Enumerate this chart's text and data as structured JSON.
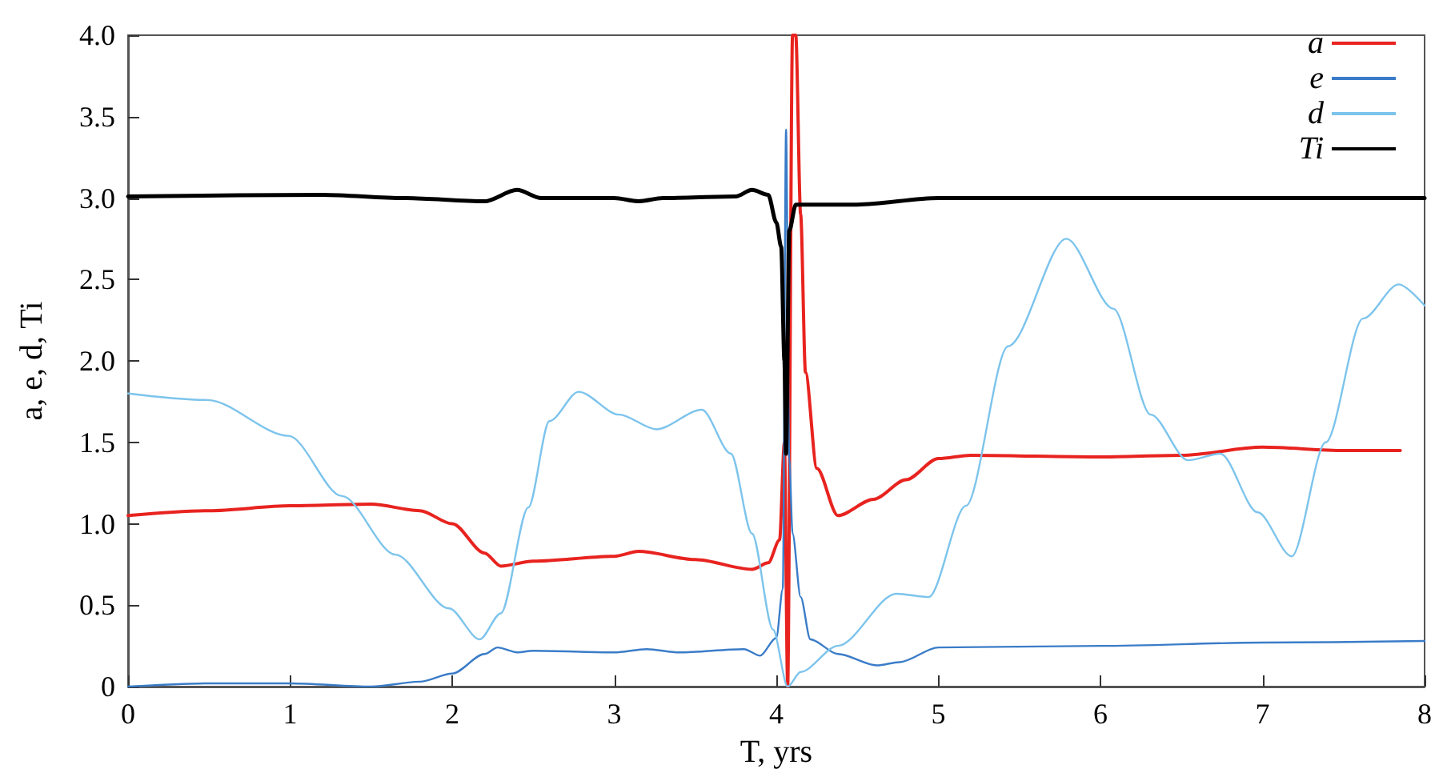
{
  "chart_data": {
    "type": "line",
    "xlabel": "T, yrs",
    "ylabel": "a, e, d, Ti",
    "xlim": [
      0,
      8
    ],
    "xticks": [
      0,
      1,
      2,
      3,
      4,
      5,
      6,
      7,
      8
    ],
    "ylim": [
      0,
      4
    ],
    "yticks": [
      0,
      0.5,
      {
        "value": 1,
        "label": "1.0"
      },
      1.5,
      {
        "value": 2,
        "label": "2.0"
      },
      2.5,
      {
        "value": 3,
        "label": "3.0"
      },
      3.5,
      {
        "value": 4,
        "label": "4.0"
      }
    ],
    "grid": false,
    "legend": "top right",
    "marker": "none",
    "line_style": "solid",
    "series": [
      {
        "name": "a",
        "color": "#e8231f",
        "x": [
          0,
          0.5,
          1,
          1.5,
          1.8,
          2,
          2.2,
          2.3,
          2.5,
          3,
          3.15,
          3.5,
          3.85,
          3.95,
          4.02,
          4.05,
          4.07,
          4.1,
          4.12,
          4.15,
          4.18,
          4.25,
          4.38,
          4.6,
          4.8,
          5,
          5.2,
          6,
          6.5,
          7,
          7.5,
          7.85
        ],
        "values": [
          1.05,
          1.08,
          1.11,
          1.12,
          1.08,
          1.0,
          0.82,
          0.74,
          0.77,
          0.8,
          0.83,
          0.78,
          0.72,
          0.76,
          0.9,
          1.5,
          0.0,
          4.0,
          4.0,
          2.9,
          1.93,
          1.34,
          1.05,
          1.15,
          1.27,
          1.4,
          1.42,
          1.41,
          1.42,
          1.47,
          1.45,
          1.45
        ]
      },
      {
        "name": "e",
        "color": "#3a7cc8",
        "x": [
          0,
          0.5,
          1,
          1.5,
          1.8,
          2,
          2.2,
          2.28,
          2.4,
          2.5,
          3,
          3.2,
          3.4,
          3.8,
          3.9,
          4.0,
          4.04,
          4.06,
          4.08,
          4.1,
          4.15,
          4.21,
          4.38,
          4.62,
          4.76,
          5,
          6,
          7,
          8
        ],
        "values": [
          0.0,
          0.02,
          0.02,
          0.0,
          0.03,
          0.08,
          0.2,
          0.24,
          0.21,
          0.22,
          0.21,
          0.23,
          0.21,
          0.23,
          0.19,
          0.3,
          0.6,
          3.42,
          1.4,
          0.94,
          0.55,
          0.29,
          0.2,
          0.13,
          0.15,
          0.24,
          0.25,
          0.27,
          0.28
        ]
      },
      {
        "name": "d",
        "color": "#7cc4ec",
        "x": [
          0,
          0.49,
          0.99,
          1.32,
          1.65,
          1.98,
          2.17,
          2.3,
          2.47,
          2.6,
          2.78,
          3.03,
          3.26,
          3.54,
          3.72,
          3.85,
          3.98,
          4.07,
          4.15,
          4.38,
          4.74,
          4.94,
          5.17,
          5.43,
          5.79,
          6.08,
          6.31,
          6.54,
          6.74,
          6.97,
          7.18,
          7.39,
          7.62,
          7.84,
          8.0
        ],
        "values": [
          1.8,
          1.76,
          1.54,
          1.17,
          0.81,
          0.48,
          0.29,
          0.45,
          1.1,
          1.63,
          1.81,
          1.67,
          1.58,
          1.7,
          1.43,
          0.94,
          0.35,
          0.0,
          0.09,
          0.25,
          0.57,
          0.55,
          1.11,
          2.09,
          2.75,
          2.32,
          1.67,
          1.39,
          1.43,
          1.07,
          0.8,
          1.5,
          2.26,
          2.47,
          2.34
        ]
      },
      {
        "name": "Ti",
        "color": "#000000",
        "x": [
          0,
          1.2,
          1.7,
          2.2,
          2.4,
          2.55,
          3.0,
          3.15,
          3.3,
          3.75,
          3.85,
          3.95,
          4.0,
          4.03,
          4.05,
          4.06,
          4.08,
          4.12,
          4.5,
          5,
          6,
          7,
          8
        ],
        "values": [
          3.01,
          3.02,
          3.0,
          2.98,
          3.05,
          3.0,
          3.0,
          2.98,
          3.0,
          3.01,
          3.05,
          3.02,
          2.85,
          2.7,
          2.0,
          1.43,
          2.8,
          2.96,
          2.96,
          3.0,
          3.0,
          3.0,
          3.0
        ]
      }
    ]
  }
}
